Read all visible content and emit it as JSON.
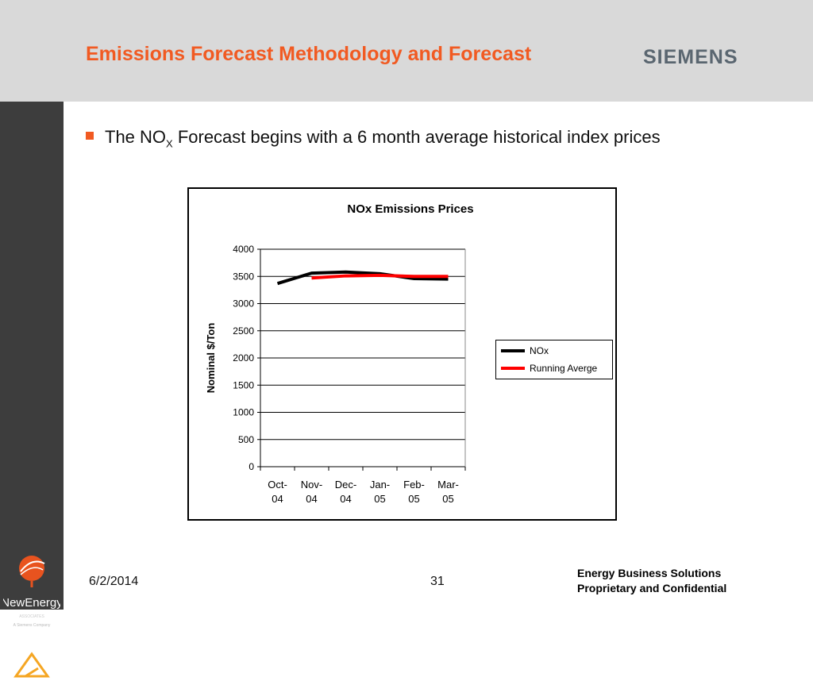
{
  "header": {
    "title": "Emissions Forecast Methodology and Forecast",
    "brand": "SIEMENS",
    "background": "#d9d9d9",
    "title_color": "#f15a22"
  },
  "bullet": {
    "text_before": "The NO",
    "subscript": "X",
    "text_after": " Forecast begins with a 6 month average historical index prices"
  },
  "sidebar": {
    "logo_name": "NewEnergy",
    "logo_sub": "ASSOCIATES",
    "logo_tag": "A Siemens Company"
  },
  "footer": {
    "date": "6/2/2014",
    "page": "31",
    "line1": "Energy Business Solutions",
    "line2": "Proprietary and Confidential"
  },
  "chart_data": {
    "type": "line",
    "title": "NOx Emissions Prices",
    "ylabel": "Nominal $/Ton",
    "xlabel": "",
    "categories": [
      [
        "Oct-",
        "04"
      ],
      [
        "Nov-",
        "04"
      ],
      [
        "Dec-",
        "04"
      ],
      [
        "Jan-",
        "05"
      ],
      [
        "Feb-",
        "05"
      ],
      [
        "Mar-",
        "05"
      ]
    ],
    "ylim": [
      0,
      4000
    ],
    "yticks": [
      0,
      500,
      1000,
      1500,
      2000,
      2500,
      3000,
      3500,
      4000
    ],
    "grid": true,
    "legend_position": "right",
    "series": [
      {
        "name": "NOx",
        "color": "#000000",
        "values": [
          3370,
          3560,
          3580,
          3550,
          3460,
          3450
        ]
      },
      {
        "name": "Running Averge",
        "color": "#ff0000",
        "values": [
          null,
          3470,
          3510,
          3520,
          3500,
          3500
        ]
      }
    ]
  }
}
